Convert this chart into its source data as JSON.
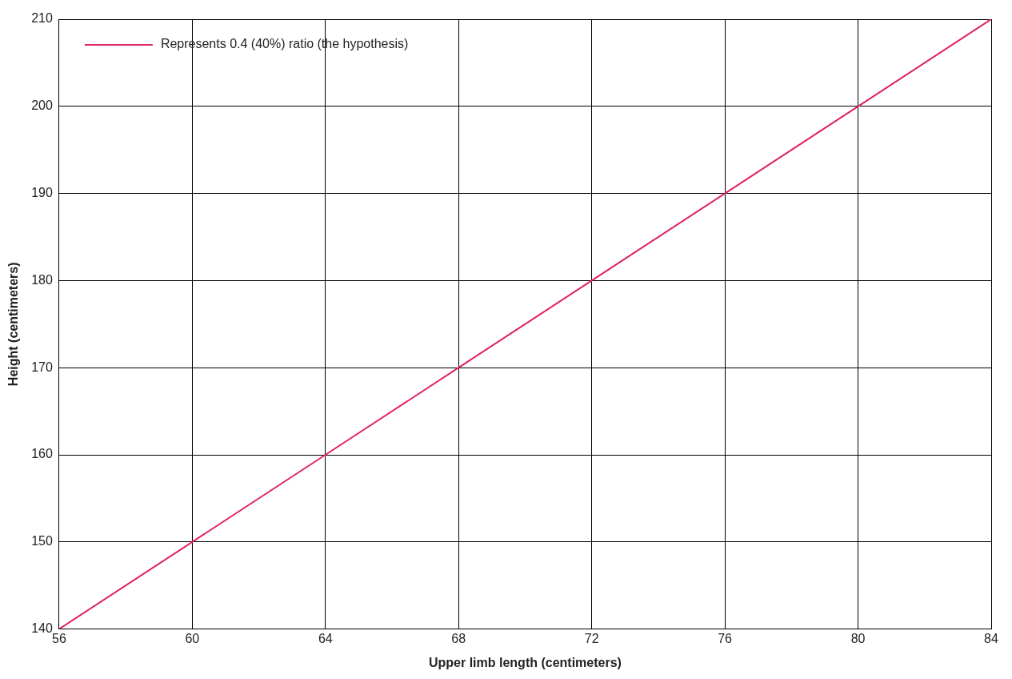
{
  "chart_data": {
    "type": "line",
    "xlabel": "Upper limb length (centimeters)",
    "ylabel": "Height (centimeters)",
    "x": [
      56,
      60,
      64,
      68,
      72,
      76,
      80,
      84
    ],
    "series": [
      {
        "name": "Represents 0.4 (40%) ratio (the hypothesis)",
        "color": "#e0245e",
        "values": [
          140,
          150,
          160,
          170,
          180,
          190,
          200,
          210
        ]
      }
    ],
    "xlim": [
      56,
      84
    ],
    "xticks": [
      56,
      60,
      64,
      68,
      72,
      76,
      80,
      84
    ],
    "ylim": [
      140,
      210
    ],
    "yticks": [
      140,
      150,
      160,
      170,
      180,
      190,
      200,
      210
    ],
    "grid": true,
    "legend": "top left",
    "marker": "none",
    "line_style": "solid"
  }
}
